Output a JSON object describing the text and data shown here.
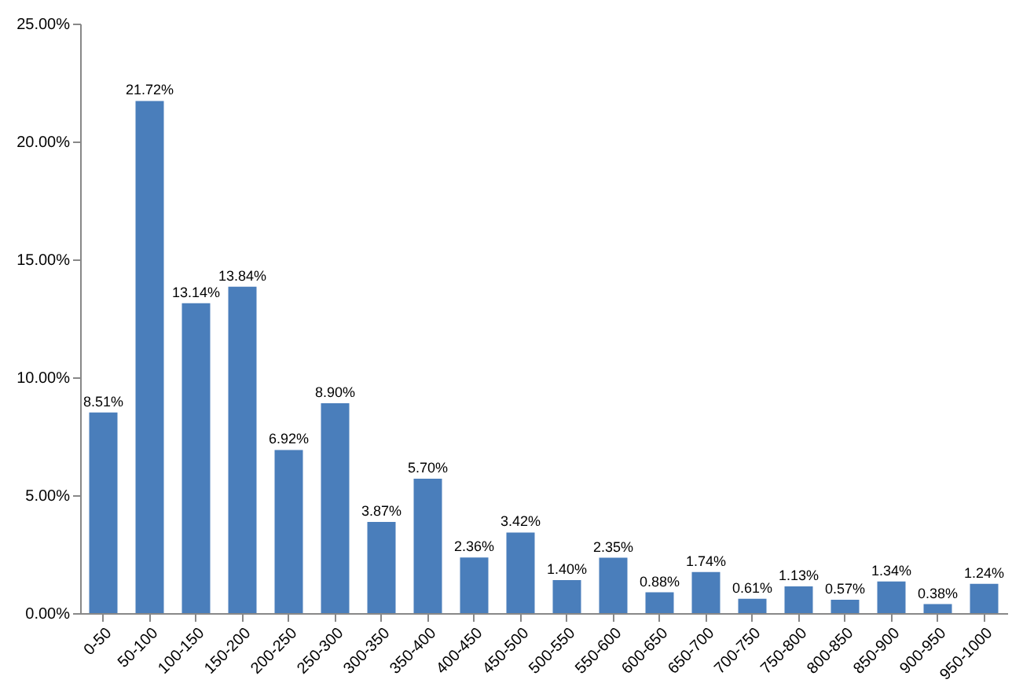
{
  "chart_data": {
    "type": "bar",
    "categories": [
      "0-50",
      "50-100",
      "100-150",
      "150-200",
      "200-250",
      "250-300",
      "300-350",
      "350-400",
      "400-450",
      "450-500",
      "500-550",
      "550-600",
      "600-650",
      "650-700",
      "700-750",
      "750-800",
      "800-850",
      "850-900",
      "900-950",
      "950-1000"
    ],
    "values": [
      8.51,
      21.72,
      13.14,
      13.84,
      6.92,
      8.9,
      3.87,
      5.7,
      2.36,
      3.42,
      1.4,
      2.35,
      0.88,
      1.74,
      0.61,
      1.13,
      0.57,
      1.34,
      0.38,
      1.24
    ],
    "value_labels": [
      "8.51%",
      "21.72%",
      "13.14%",
      "13.84%",
      "6.92%",
      "8.90%",
      "3.87%",
      "5.70%",
      "2.36%",
      "3.42%",
      "1.40%",
      "2.35%",
      "0.88%",
      "1.74%",
      "0.61%",
      "1.13%",
      "0.57%",
      "1.34%",
      "0.38%",
      "1.24%"
    ],
    "color": "#4a7ebb",
    "ylim": [
      0,
      25
    ],
    "yticks": [
      {
        "value": 0,
        "label": "0.00%"
      },
      {
        "value": 5,
        "label": "5.00%"
      },
      {
        "value": 10,
        "label": "10.00%"
      },
      {
        "value": 15,
        "label": "15.00%"
      },
      {
        "value": 20,
        "label": "20.00%"
      },
      {
        "value": 25,
        "label": "25.00%"
      }
    ],
    "grid": false
  }
}
